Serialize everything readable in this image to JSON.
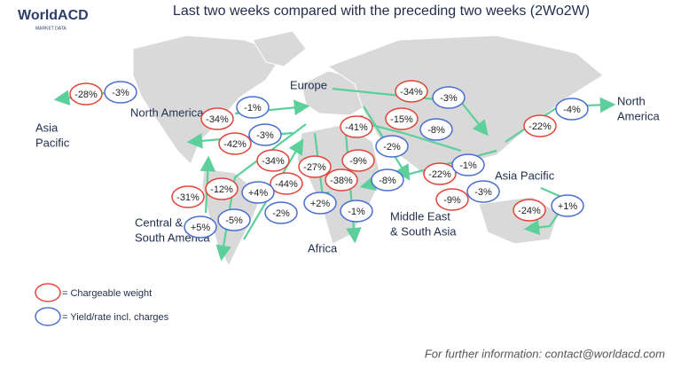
{
  "logo": {
    "name": "WorldACD",
    "tagline": "MARKET DATA"
  },
  "title": "Last two weeks compared with the preceding two weeks (2Wo2W)",
  "regions": [
    [
      "Asia",
      "Pacific"
    ],
    [
      "North America"
    ],
    [
      "Europe"
    ],
    [
      "Central &",
      "South America"
    ],
    [
      "Africa"
    ],
    [
      "Middle East",
      "& South Asia"
    ],
    [
      "Asia Pacific"
    ],
    [
      "North",
      "America"
    ]
  ],
  "chargeable_weight": [
    "-28%",
    "-34%",
    "-42%",
    "-34%",
    "-27%",
    "-9%",
    "-41%",
    "-38%",
    "-44%",
    "-31%",
    "-12%",
    "-34%",
    "-15%",
    "-22%",
    "-9%",
    "-22%",
    "-24%"
  ],
  "yield": [
    "-3%",
    "-1%",
    "-3%",
    "+4%",
    "-5%",
    "+5%",
    "-2%",
    "+2%",
    "-1%",
    "-8%",
    "-2%",
    "-8%",
    "-3%",
    "-1%",
    "-3%",
    "-4%",
    "+1%"
  ],
  "legend": [
    "= Chargeable weight",
    "= Yield/rate incl. charges"
  ],
  "footer": "For further information: contact@worldacd.com"
}
